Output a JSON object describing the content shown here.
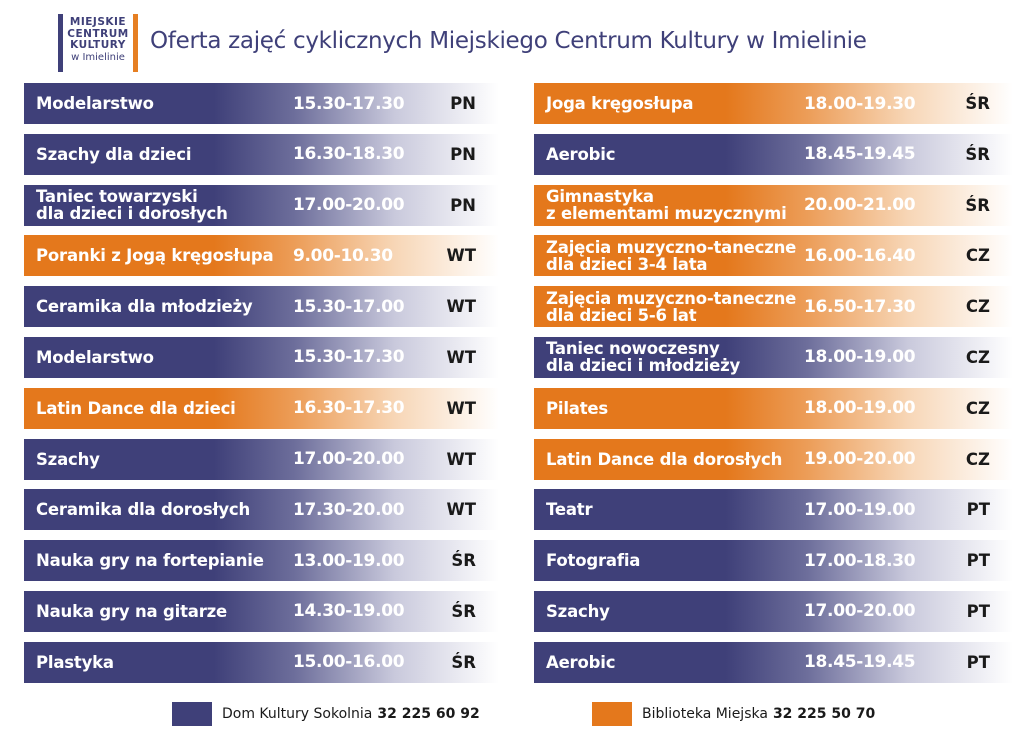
{
  "logo": {
    "line1": "MIEJSKIE",
    "line2": "CENTRUM",
    "line3": "KULTURY",
    "line4": "w Imielinie"
  },
  "title": "Oferta zajęć cyklicznych Miejskiego Centrum Kultury w Imielinie",
  "colors": {
    "blue": "#3f4079",
    "orange": "#e4781c"
  },
  "left_rows": [
    {
      "name": "Modelarstwo",
      "time": "15.30-17.30",
      "day": "PN",
      "color": "blue"
    },
    {
      "name": "Szachy dla dzieci",
      "time": "16.30-18.30",
      "day": "PN",
      "color": "blue"
    },
    {
      "name": "Taniec towarzyski\ndla dzieci i dorosłych",
      "time": "17.00-20.00",
      "day": "PN",
      "color": "blue"
    },
    {
      "name": "Poranki z Jogą kręgosłupa",
      "time": "9.00-10.30",
      "day": "WT",
      "color": "orange"
    },
    {
      "name": "Ceramika dla młodzieży",
      "time": "15.30-17.00",
      "day": "WT",
      "color": "blue"
    },
    {
      "name": "Modelarstwo",
      "time": "15.30-17.30",
      "day": "WT",
      "color": "blue"
    },
    {
      "name": "Latin Dance dla dzieci",
      "time": "16.30-17.30",
      "day": "WT",
      "color": "orange"
    },
    {
      "name": "Szachy",
      "time": "17.00-20.00",
      "day": "WT",
      "color": "blue"
    },
    {
      "name": "Ceramika dla dorosłych",
      "time": "17.30-20.00",
      "day": "WT",
      "color": "blue"
    },
    {
      "name": "Nauka gry na fortepianie",
      "time": "13.00-19.00",
      "day": "ŚR",
      "color": "blue"
    },
    {
      "name": "Nauka gry na gitarze",
      "time": "14.30-19.00",
      "day": "ŚR",
      "color": "blue"
    },
    {
      "name": "Plastyka",
      "time": "15.00-16.00",
      "day": "ŚR",
      "color": "blue"
    }
  ],
  "right_rows": [
    {
      "name": "Joga kręgosłupa",
      "time": "18.00-19.30",
      "day": "ŚR",
      "color": "orange"
    },
    {
      "name": "Aerobic",
      "time": "18.45-19.45",
      "day": "ŚR",
      "color": "blue"
    },
    {
      "name": "Gimnastyka\nz elementami muzycznymi",
      "time": "20.00-21.00",
      "day": "ŚR",
      "color": "orange"
    },
    {
      "name": "Zajęcia muzyczno-taneczne\ndla dzieci 3-4 lata",
      "time": "16.00-16.40",
      "day": "CZ",
      "color": "orange"
    },
    {
      "name": "Zajęcia muzyczno-taneczne\ndla dzieci 5-6 lat",
      "time": "16.50-17.30",
      "day": "CZ",
      "color": "orange"
    },
    {
      "name": "Taniec nowoczesny\ndla dzieci i młodzieży",
      "time": "18.00-19.00",
      "day": "CZ",
      "color": "blue"
    },
    {
      "name": "Pilates",
      "time": "18.00-19.00",
      "day": "CZ",
      "color": "orange"
    },
    {
      "name": "Latin Dance dla dorosłych",
      "time": "19.00-20.00",
      "day": "CZ",
      "color": "orange"
    },
    {
      "name": "Teatr",
      "time": "17.00-19.00",
      "day": "PT",
      "color": "blue"
    },
    {
      "name": "Fotografia",
      "time": "17.00-18.30",
      "day": "PT",
      "color": "blue"
    },
    {
      "name": "Szachy",
      "time": "17.00-20.00",
      "day": "PT",
      "color": "blue"
    },
    {
      "name": "Aerobic",
      "time": "18.45-19.45",
      "day": "PT",
      "color": "blue"
    }
  ],
  "legend": [
    {
      "label": "Dom Kultury Sokolnia",
      "phone": "32 225 60 92",
      "color": "blue"
    },
    {
      "label": "Biblioteka Miejska",
      "phone": "32 225 50 70",
      "color": "orange"
    }
  ]
}
